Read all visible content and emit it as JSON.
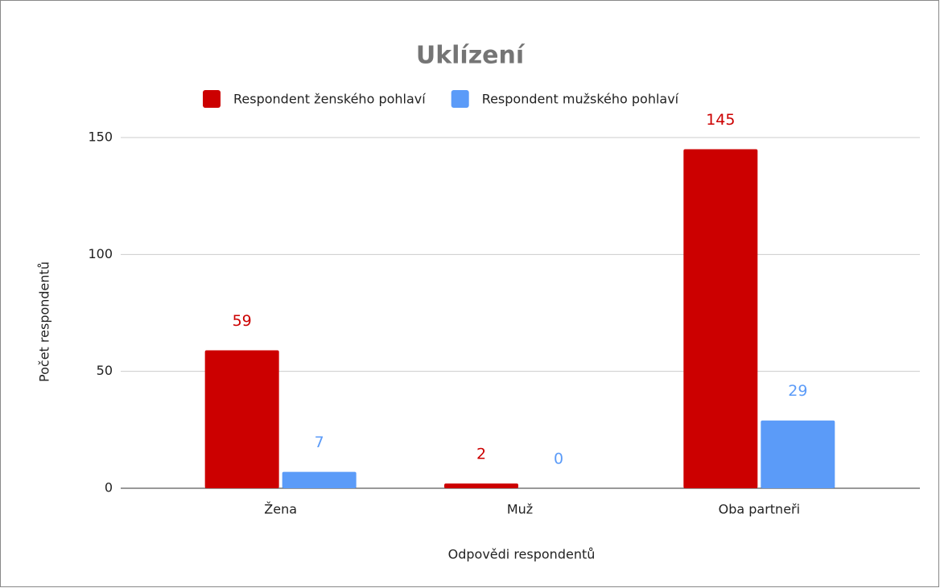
{
  "chart_data": {
    "type": "bar",
    "title": "Uklízení",
    "x_label": "Odpovědi respondentů",
    "y_label": "Počet respondentů",
    "categories": [
      "Žena",
      "Muž",
      "Oba partneři"
    ],
    "series": [
      {
        "name": "Respondent ženského pohlaví",
        "color": "#cc0000",
        "values": [
          59,
          2,
          145
        ]
      },
      {
        "name": "Respondent mužského pohlaví",
        "color": "#5b9bf8",
        "values": [
          7,
          0,
          29
        ]
      }
    ],
    "ylim": [
      0,
      150
    ],
    "yticks": [
      0,
      50,
      100,
      150
    ],
    "grid": true,
    "legend": "top",
    "data_labels": true
  }
}
